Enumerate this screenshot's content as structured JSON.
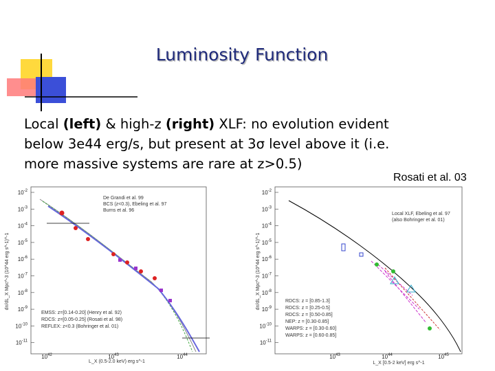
{
  "header": {
    "title": "Luminosity Function"
  },
  "body": {
    "lines": [
      [
        {
          "text": "Local ",
          "bold": false
        },
        {
          "text": "(left)",
          "bold": true
        },
        {
          "text": " & high-z ",
          "bold": false
        },
        {
          "text": "(right)",
          "bold": true
        },
        {
          "text": " XLF: no evolution evident",
          "bold": false
        }
      ],
      [
        {
          "text": "below 3e44 erg/s, but present at 3σ level above it (i.e.",
          "bold": false
        }
      ],
      [
        {
          "text": "more massive systems are rare at z>0.5)",
          "bold": false
        }
      ]
    ]
  },
  "citation": "Rosati et al. 03",
  "figures": [
    {
      "x_label": "L_X (0.5-2.0 keV) erg s^-1",
      "y_label": "dn/dL_X Mpc^-3 (10^44 erg s^-1)^-1",
      "x_ticks": [
        {
          "base": "10",
          "exp": "42"
        },
        {
          "base": "10",
          "exp": "43"
        },
        {
          "base": "10",
          "exp": "44"
        }
      ],
      "y_ticks": [
        {
          "base": "10",
          "exp": "-2"
        },
        {
          "base": "10",
          "exp": "-3"
        },
        {
          "base": "10",
          "exp": "-4"
        },
        {
          "base": "10",
          "exp": "-5"
        },
        {
          "base": "10",
          "exp": "-6"
        },
        {
          "base": "10",
          "exp": "-7"
        },
        {
          "base": "10",
          "exp": "-8"
        },
        {
          "base": "10",
          "exp": "-9"
        },
        {
          "base": "10",
          "exp": "-10"
        },
        {
          "base": "10",
          "exp": "-11"
        }
      ],
      "legend_top": [
        "De Grandi et al. 99",
        "BCS (z<0.3), Ebeling et al. 97",
        "Burns et al. 96"
      ],
      "legend_bottom": [
        "EMSS: z=[0.14-0.20] (Henry et al. 92)",
        "RDCS: z=[0.05-0.25] (Rosati et al. 98)",
        "REFLEX: z<0.3 (Bohringer et al. 01)"
      ]
    },
    {
      "x_label": "L_X [0.5-2 keV] erg s^-1",
      "y_label": "dn/dL_X Mpc^-3 (10^44 erg s^-1)^-1",
      "x_ticks": [
        {
          "base": "10",
          "exp": "43"
        },
        {
          "base": "10",
          "exp": "44"
        },
        {
          "base": "10",
          "exp": "45"
        }
      ],
      "y_ticks": [
        {
          "base": "10",
          "exp": "-2"
        },
        {
          "base": "10",
          "exp": "-3"
        },
        {
          "base": "10",
          "exp": "-4"
        },
        {
          "base": "10",
          "exp": "-5"
        },
        {
          "base": "10",
          "exp": "-6"
        },
        {
          "base": "10",
          "exp": "-7"
        },
        {
          "base": "10",
          "exp": "-8"
        },
        {
          "base": "10",
          "exp": "-9"
        },
        {
          "base": "10",
          "exp": "-10"
        },
        {
          "base": "10",
          "exp": "-11"
        }
      ],
      "legend_top": [
        "Local XLF, Ebeling et al. 97",
        "(also Bohringer et al. 01)"
      ],
      "legend_bottom": [
        "RDCS: z = [0.85-1.3]",
        "RDCS: z = [0.25-0.5]",
        "RDCS: z = [0.50-0.85]",
        "NEP: z = [0.30-0.85]",
        "WARPS: z = [0.30-0.60]",
        "WARPS: z = [0.60-0.85]"
      ]
    }
  ]
}
